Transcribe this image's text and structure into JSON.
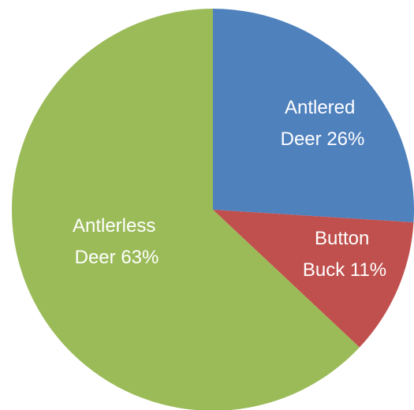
{
  "chart_data": {
    "type": "pie",
    "start_angle_deg": 0,
    "direction": "clockwise",
    "legend": "none",
    "colors": {
      "antlered": "#4F81BD",
      "button": "#C0504D",
      "antlerless": "#9BBB59",
      "label_text": "#FFFFFF"
    },
    "slices": [
      {
        "key": "antlered",
        "value": 26,
        "label_lines": [
          "Antlered",
          "Deer 26%"
        ]
      },
      {
        "key": "button",
        "value": 11,
        "label_lines": [
          "Button",
          "Buck 11%"
        ]
      },
      {
        "key": "antlerless",
        "value": 63,
        "label_lines": [
          "Antlerless",
          "Deer 63%"
        ]
      }
    ]
  }
}
